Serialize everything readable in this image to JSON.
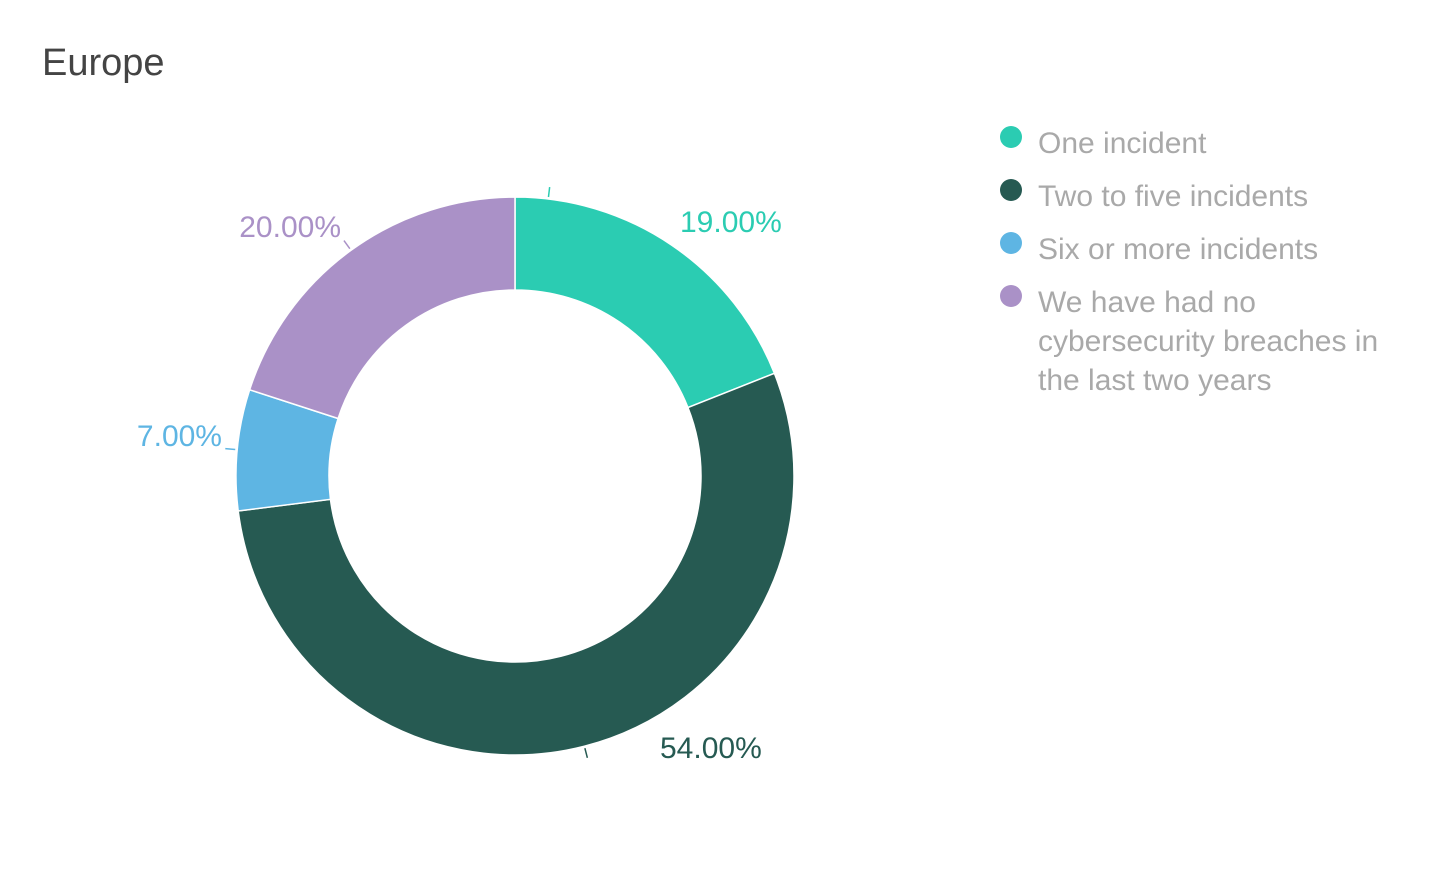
{
  "chart_data": {
    "type": "pie",
    "title": "Europe",
    "donut": true,
    "legend_position": "right",
    "series": [
      {
        "name": "One incident",
        "value": 19.0,
        "label": "19.00%",
        "color": "#2bccb2"
      },
      {
        "name": "Two to five incidents",
        "value": 54.0,
        "label": "54.00%",
        "color": "#265a52"
      },
      {
        "name": "Six or more incidents",
        "value": 7.0,
        "label": "7.00%",
        "color": "#5eb5e3"
      },
      {
        "name": "We have had no cybersecurity breaches in the last two years",
        "value": 20.0,
        "label": "20.00%",
        "color": "#aa91c7"
      }
    ]
  }
}
